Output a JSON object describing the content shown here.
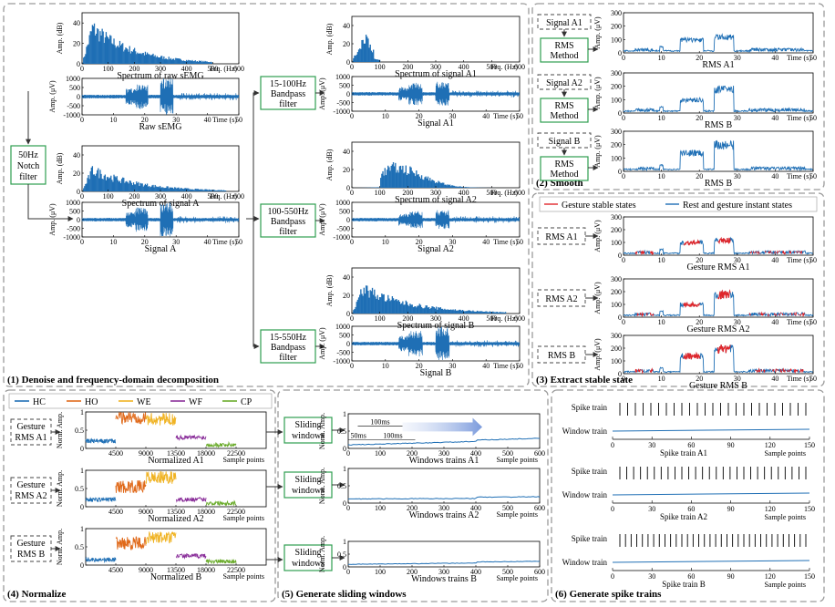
{
  "panels": {
    "p1": "(1) Denoise and frequency-domain decomposition",
    "p2": "(2) Smooth",
    "p3": "(3) Extract stable state",
    "p4": "(4) Normalize",
    "p5": "(5) Generate sliding windows",
    "p6": "(6) Generate spike trains"
  },
  "boxes": {
    "notch": [
      "50Hz",
      "Notch",
      "filter"
    ],
    "bp1": [
      "15-100Hz",
      "Bandpass",
      "filter"
    ],
    "bp2": [
      "100-550Hz",
      "Bandpass",
      "filter"
    ],
    "bp3": [
      "15-550Hz",
      "Bandpass",
      "filter"
    ],
    "rms": [
      "RMS",
      "Method"
    ],
    "sliding": [
      "Sliding",
      "windows"
    ]
  },
  "inputs": {
    "smooth": [
      "Signal A1",
      "Signal A2",
      "Signal B"
    ],
    "stable": [
      "RMS A1",
      "RMS A2",
      "RMS B"
    ],
    "normalize": [
      [
        "Gesture",
        "RMS A1"
      ],
      [
        "Gesture",
        "RMS A2"
      ],
      [
        "Gesture",
        "RMS B"
      ]
    ]
  },
  "legends": {
    "stable": [
      "Gesture stable states",
      "Rest and gesture instant states"
    ],
    "normalize": [
      "HC",
      "HO",
      "WE",
      "WF",
      "CP"
    ]
  },
  "colors": {
    "signal": "#1f6fb5",
    "stable": "#e0262b",
    "HC": "#1f6fb5",
    "HO": "#e06a1b",
    "WE": "#f0b323",
    "WF": "#8a2f9a",
    "CP": "#6aab2b",
    "green_box": "#2e9e4f",
    "panel_border": "#9a9a9a"
  },
  "axis_labels": {
    "amp_db": "Amp. (dB)",
    "amp_uv": "Amp. (μV)",
    "frq": "Frq. (Hz)",
    "time": "Time (s)",
    "norm": "Norm. Amp.",
    "sample_points": "Sample points",
    "spike_train": "Spike train",
    "window_train": "Window train"
  },
  "chart_titles": {
    "spec_raw": "Spectrum of raw sEMG",
    "raw": "Raw sEMG",
    "spec_a": "Spectrum of signal A",
    "sig_a": "Signal A",
    "spec_a1": "Spectrum of signal A1",
    "sig_a1": "Signal A1",
    "spec_a2": "Spectrum of signal A2",
    "sig_a2": "Signal A2",
    "spec_b": "Spectrum of signal B",
    "sig_b": "Signal B",
    "rms_a1": "RMS A1",
    "rms_b_top": "RMS B",
    "rms_b": "RMS B",
    "grms_a1": "Gesture RMS A1",
    "grms_a2": "Gesture RMS A2",
    "grms_b": "Gesture RMS B",
    "norm_a1": "Normalized A1",
    "norm_a2": "Normalized  A2",
    "norm_b": "Normalized B",
    "win_a1": "Windows trains A1",
    "win_a2": "Windows trains A2",
    "win_b": "Windows trains B",
    "spk_a1": "Spike train A1",
    "spk_a2": "Spike train A2",
    "spk_b": "Spike train B"
  },
  "window_annotations": [
    "100ms",
    "50ms",
    "100ms"
  ],
  "ticks": {
    "freq_x": [
      "0",
      "100",
      "200",
      "300",
      "400",
      "500",
      "600"
    ],
    "time_x": [
      "0",
      "10",
      "20",
      "30",
      "40",
      "50"
    ],
    "db_y": [
      "0",
      "20",
      "40"
    ],
    "emg_y": [
      "1000",
      "500",
      "0",
      "-500",
      "-1000"
    ],
    "rms_y": [
      "300",
      "200",
      "100",
      "0"
    ],
    "norm_x": [
      "4500",
      "9000",
      "13500",
      "18000",
      "22500"
    ],
    "norm_y": [
      "1",
      "0.5",
      "0"
    ],
    "win_x": [
      "0",
      "100",
      "200",
      "300",
      "400",
      "500",
      "600"
    ],
    "win_y": [
      "1",
      "0.5",
      "0"
    ],
    "spk_x": [
      "0",
      "30",
      "60",
      "90",
      "120",
      "150"
    ]
  },
  "chart_data": [
    {
      "type": "bar",
      "title": "Spectrum of raw sEMG",
      "xlabel": "Frq. (Hz)",
      "ylabel": "Amp. (dB)",
      "xlim": [
        0,
        600
      ],
      "ylim": [
        0,
        50
      ],
      "peak_x": 40,
      "peak_y": 45,
      "cutoff_x": 500
    },
    {
      "type": "line",
      "title": "Raw sEMG",
      "xlabel": "Time (s)",
      "ylabel": "Amp. (μV)",
      "xlim": [
        0,
        50
      ],
      "ylim": [
        -1000,
        1000
      ],
      "bursts": [
        [
          14,
          17,
          450
        ],
        [
          17,
          21,
          700
        ],
        [
          25,
          29,
          1000
        ]
      ]
    },
    {
      "type": "bar",
      "title": "Spectrum of signal A",
      "xlabel": "Frq. (Hz)",
      "ylabel": "Amp. (dB)",
      "xlim": [
        0,
        600
      ],
      "ylim": [
        0,
        50
      ],
      "peak_x": 40,
      "peak_y": 30,
      "cutoff_x": 550
    },
    {
      "type": "line",
      "title": "Signal A",
      "xlabel": "Time (s)",
      "ylabel": "Amp. (μV)",
      "xlim": [
        0,
        50
      ],
      "ylim": [
        -1000,
        1000
      ],
      "bursts": [
        [
          14,
          17,
          450
        ],
        [
          17,
          21,
          700
        ],
        [
          25,
          29,
          1000
        ]
      ]
    },
    {
      "type": "bar",
      "title": "Spectrum of signal A1",
      "xlabel": "Frq. (Hz)",
      "ylabel": "Amp. (dB)",
      "xlim": [
        0,
        600
      ],
      "ylim": [
        0,
        50
      ],
      "peak_x": 50,
      "peak_y": 38,
      "cutoff_x": 100
    },
    {
      "type": "line",
      "title": "Signal A1",
      "xlabel": "Time (s)",
      "ylabel": "Amp. (μV)",
      "xlim": [
        0,
        50
      ],
      "ylim": [
        -1000,
        1000
      ],
      "bursts": [
        [
          14,
          17,
          400
        ],
        [
          17,
          21,
          650
        ],
        [
          25,
          29,
          700
        ]
      ]
    },
    {
      "type": "bar",
      "title": "Spectrum of signal A2",
      "xlabel": "Frq. (Hz)",
      "ylabel": "Amp. (dB)",
      "xlim": [
        0,
        600
      ],
      "ylim": [
        0,
        50
      ],
      "peak_x": 150,
      "peak_y": 28,
      "cutoff_x": 550
    },
    {
      "type": "line",
      "title": "Signal A2",
      "xlabel": "Time (s)",
      "ylabel": "Amp. (μV)",
      "xlim": [
        0,
        50
      ],
      "ylim": [
        -1000,
        1000
      ],
      "bursts": [
        [
          14,
          17,
          350
        ],
        [
          17,
          21,
          500
        ],
        [
          25,
          29,
          550
        ]
      ]
    },
    {
      "type": "bar",
      "title": "Spectrum of signal B",
      "xlabel": "Frq. (Hz)",
      "ylabel": "Amp. (dB)",
      "xlim": [
        0,
        600
      ],
      "ylim": [
        0,
        50
      ],
      "peak_x": 40,
      "peak_y": 35,
      "cutoff_x": 550
    },
    {
      "type": "line",
      "title": "Signal B",
      "xlabel": "Time (s)",
      "ylabel": "Amp. (μV)",
      "xlim": [
        0,
        50
      ],
      "ylim": [
        -1000,
        1000
      ],
      "bursts": [
        [
          14,
          17,
          450
        ],
        [
          17,
          21,
          750
        ],
        [
          25,
          29,
          1000
        ]
      ]
    },
    {
      "type": "line",
      "title": "RMS A1",
      "xlabel": "Time (s)",
      "ylabel": "Amp. (μV)",
      "xlim": [
        0,
        50
      ],
      "ylim": [
        0,
        300
      ],
      "levels": [
        [
          15,
          21,
          100
        ],
        [
          24,
          29,
          120
        ]
      ]
    },
    {
      "type": "line",
      "title": "RMS B",
      "xlabel": "Time (s)",
      "ylabel": "Amp. (μV)",
      "xlim": [
        0,
        50
      ],
      "ylim": [
        0,
        300
      ],
      "levels": [
        [
          15,
          21,
          100
        ],
        [
          24,
          29,
          180
        ]
      ]
    },
    {
      "type": "line",
      "title": "RMS B",
      "xlabel": "Time (s)",
      "ylabel": "Amp. (μV)",
      "xlim": [
        0,
        50
      ],
      "ylim": [
        0,
        300
      ],
      "levels": [
        [
          15,
          21,
          140
        ],
        [
          24,
          29,
          200
        ]
      ]
    },
    {
      "type": "line",
      "title": "Gesture RMS A1",
      "xlabel": "Time (s)",
      "ylabel": "Amp. (μV)",
      "xlim": [
        0,
        50
      ],
      "ylim": [
        0,
        300
      ],
      "levels": [
        [
          15,
          21,
          100
        ],
        [
          24,
          29,
          120
        ]
      ],
      "stable": true
    },
    {
      "type": "line",
      "title": "Gesture RMS A2",
      "xlabel": "Time (s)",
      "ylabel": "Amp. (μV)",
      "xlim": [
        0,
        50
      ],
      "ylim": [
        0,
        300
      ],
      "levels": [
        [
          15,
          21,
          100
        ],
        [
          24,
          29,
          180
        ]
      ],
      "stable": true
    },
    {
      "type": "line",
      "title": "Gesture RMS B",
      "xlabel": "Time (s)",
      "ylabel": "Amp. (μV)",
      "xlim": [
        0,
        50
      ],
      "ylim": [
        0,
        300
      ],
      "levels": [
        [
          15,
          21,
          140
        ],
        [
          24,
          29,
          200
        ]
      ],
      "stable": true
    },
    {
      "type": "line",
      "title": "Normalized A1",
      "xlabel": "Sample points",
      "ylabel": "Norm. Amp.",
      "xlim": [
        0,
        27000
      ],
      "ylim": [
        0,
        1
      ],
      "series": [
        {
          "name": "HC",
          "range": [
            0,
            4500
          ],
          "level": 0.2
        },
        {
          "name": "HO",
          "range": [
            4500,
            9000
          ],
          "level": 0.85
        },
        {
          "name": "WE",
          "range": [
            9000,
            13500
          ],
          "level": 0.8
        },
        {
          "name": "WF",
          "range": [
            13500,
            18000
          ],
          "level": 0.3
        },
        {
          "name": "CP",
          "range": [
            18000,
            22500
          ],
          "level": 0.1
        }
      ]
    },
    {
      "type": "line",
      "title": "Normalized  A2",
      "xlabel": "Sample points",
      "ylabel": "Norm. Amp.",
      "xlim": [
        0,
        27000
      ],
      "ylim": [
        0,
        1
      ],
      "series": [
        {
          "name": "HC",
          "range": [
            0,
            4500
          ],
          "level": 0.2
        },
        {
          "name": "HO",
          "range": [
            4500,
            9000
          ],
          "level": 0.55
        },
        {
          "name": "WE",
          "range": [
            9000,
            13500
          ],
          "level": 0.8
        },
        {
          "name": "WF",
          "range": [
            13500,
            18000
          ],
          "level": 0.2
        },
        {
          "name": "CP",
          "range": [
            18000,
            22500
          ],
          "level": 0.1
        }
      ]
    },
    {
      "type": "line",
      "title": "Normalized B",
      "xlabel": "Sample points",
      "ylabel": "Norm. Amp.",
      "xlim": [
        0,
        27000
      ],
      "ylim": [
        0,
        1
      ],
      "series": [
        {
          "name": "HC",
          "range": [
            0,
            4500
          ],
          "level": 0.15
        },
        {
          "name": "HO",
          "range": [
            4500,
            9000
          ],
          "level": 0.6
        },
        {
          "name": "WE",
          "range": [
            9000,
            13500
          ],
          "level": 0.75
        },
        {
          "name": "WF",
          "range": [
            13500,
            18000
          ],
          "level": 0.25
        },
        {
          "name": "CP",
          "range": [
            18000,
            22500
          ],
          "level": 0.1
        }
      ]
    },
    {
      "type": "line",
      "title": "Windows trains A1",
      "xlabel": "Sample points",
      "ylabel": "Norm. Amp.",
      "xlim": [
        0,
        600
      ],
      "ylim": [
        0,
        1
      ],
      "level_start": 0.1,
      "level_end": 0.25
    },
    {
      "type": "line",
      "title": "Windows trains A2",
      "xlabel": "Sample points",
      "ylabel": "Norm. Amp.",
      "xlim": [
        0,
        600
      ],
      "ylim": [
        0,
        1
      ],
      "level_start": 0.12,
      "level_end": 0.14
    },
    {
      "type": "line",
      "title": "Windows trains B",
      "xlabel": "Sample points",
      "ylabel": "Norm. Amp.",
      "xlim": [
        0,
        600
      ],
      "ylim": [
        0,
        1
      ],
      "level_start": 0.1,
      "level_end": 0.18
    },
    {
      "type": "line",
      "title": "Spike train A1",
      "xlabel": "Sample points",
      "xlim": [
        0,
        150
      ],
      "spike_count": 25
    },
    {
      "type": "line",
      "title": "Spike train A2",
      "xlabel": "Sample points",
      "xlim": [
        0,
        150
      ],
      "spike_count": 28
    },
    {
      "type": "line",
      "title": "Spike train B",
      "xlabel": "Sample points",
      "xlim": [
        0,
        150
      ],
      "spike_count": 34
    }
  ]
}
